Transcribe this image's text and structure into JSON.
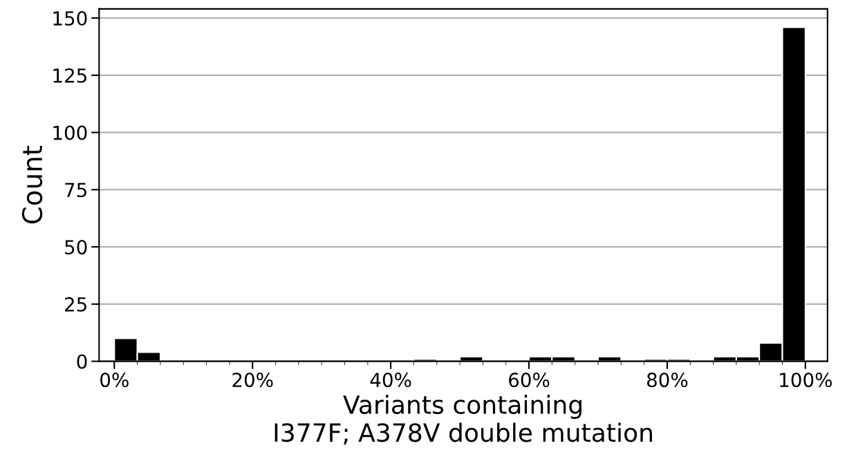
{
  "chart_data": {
    "type": "histogram",
    "xlabel": "Variants containing\nI377F; A378V double mutation",
    "ylabel": "Count",
    "bins": [
      0,
      3.33,
      6.67,
      10,
      13.33,
      16.67,
      20,
      23.33,
      26.67,
      30,
      33.33,
      36.67,
      40,
      43.33,
      46.67,
      50,
      53.33,
      56.67,
      60,
      63.33,
      66.67,
      70,
      73.33,
      76.67,
      80,
      83.33,
      86.67,
      90,
      93.33,
      96.67,
      100
    ],
    "values": [
      10,
      4,
      0,
      0,
      0,
      0,
      0,
      0,
      0,
      0,
      0,
      0,
      0,
      1,
      0,
      2,
      0,
      0,
      2,
      2,
      0,
      2,
      0,
      1,
      1,
      0,
      2,
      2,
      8,
      146
    ],
    "color": "#000000",
    "xlim": [
      -2.2,
      103.2
    ],
    "ylim": [
      0,
      154
    ],
    "xticks": [
      {
        "value": 0,
        "label": "0%"
      },
      {
        "value": 20,
        "label": "20%"
      },
      {
        "value": 40,
        "label": "40%"
      },
      {
        "value": 60,
        "label": "60%"
      },
      {
        "value": 80,
        "label": "80%"
      },
      {
        "value": 100,
        "label": "100%"
      }
    ],
    "yticks": [
      0,
      25,
      50,
      75,
      100,
      125,
      150
    ],
    "grid": "y"
  }
}
